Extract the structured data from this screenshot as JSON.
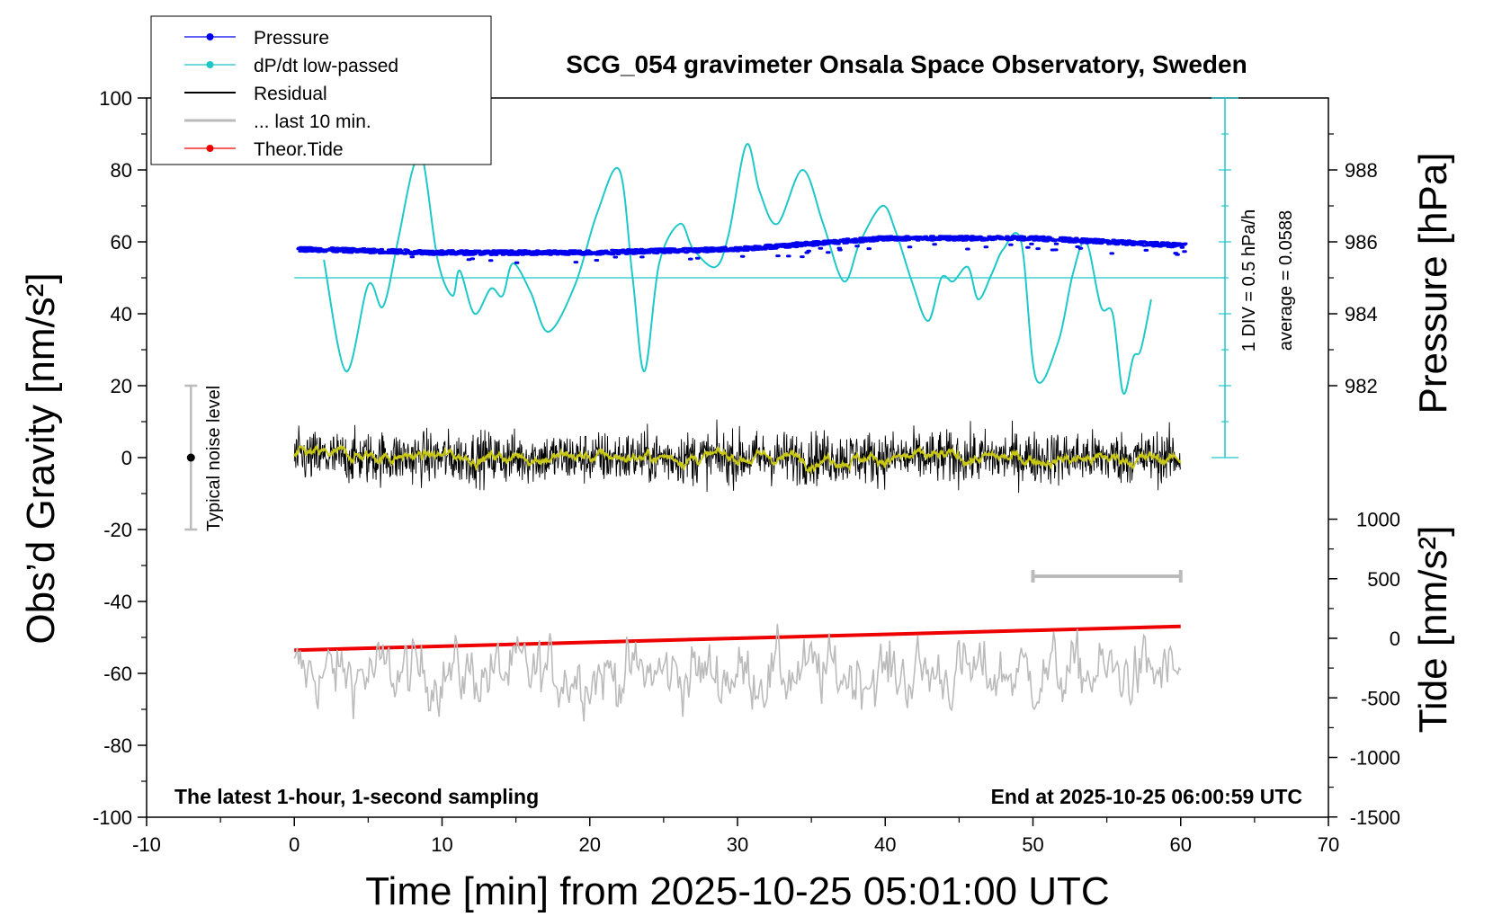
{
  "chart_data": {
    "type": "line",
    "title": "SCG_054 gravimeter Onsala Space Observatory, Sweden",
    "xlabel": "Time [min] from 2025-10-25 05:01:00 UTC",
    "ylabel_left": "Obs’d Gravity [nm/s²]",
    "ylabel_right_top": "Pressure [hPa]",
    "ylabel_right_bottom": "Tide [nm/s²]",
    "xlim": [
      -10,
      70
    ],
    "ylim_left": [
      -100,
      100
    ],
    "x_ticks": [
      "-10",
      "0",
      "10",
      "20",
      "30",
      "40",
      "50",
      "60",
      "70"
    ],
    "y_ticks_left": [
      "100",
      "80",
      "60",
      "40",
      "20",
      "0",
      "-20",
      "-40",
      "-60",
      "-80",
      "-100"
    ],
    "pressure_ticks": [
      "988",
      "986",
      "984",
      "982"
    ],
    "tide_ticks": [
      "1000",
      "500",
      "0",
      "-500",
      "-1000",
      "-1500"
    ],
    "legend_placement": "top-left",
    "legend": [
      {
        "name": "Pressure",
        "color": "#0000ee"
      },
      {
        "name": "dP/dt low-passed",
        "color": "#1fc8c8"
      },
      {
        "name": "Residual",
        "color": "#000000"
      },
      {
        "name": "... last 10 min.",
        "color": "#bbbbbb"
      },
      {
        "name": "Theor.Tide",
        "color": "#ee0000"
      }
    ],
    "notes": {
      "bottom_left": "The latest 1-hour, 1-second sampling",
      "bottom_right": "End at 2025-10-25 06:00:59 UTC",
      "noise": "Typical noise level",
      "div": "1 DIV = 0.5 hPa/h",
      "average": "average = 0.0588"
    },
    "series": [
      {
        "name": "Pressure",
        "unit": "hPa",
        "x": [
          0,
          10,
          20,
          30,
          40,
          50,
          60
        ],
        "values": [
          985.8,
          985.7,
          985.7,
          985.8,
          986.1,
          986.1,
          985.9
        ]
      },
      {
        "name": "dP/dt low-passed",
        "unit": "gravity-axis nm/s² (display)",
        "x": [
          2,
          3.5,
          5,
          6,
          7,
          8,
          8.7,
          9.7,
          10.7,
          11.2,
          12.2,
          13.3,
          14.1,
          14.8,
          16,
          17.2,
          19,
          20.5,
          22,
          22.9,
          23.7,
          24.7,
          26.1,
          27,
          28.5,
          29.4,
          30.6,
          31.5,
          32.7,
          34.4,
          35.8,
          37.2,
          38.3,
          39.8,
          40.7,
          41.8,
          42.9,
          43.8,
          44.6,
          45.6,
          46.3,
          47.2,
          48,
          49.2,
          50.2,
          51.7,
          52.7,
          53.6,
          54.6,
          55.4,
          56.1,
          56.8,
          57.3,
          58
        ],
        "values": [
          55,
          24,
          48,
          42,
          60,
          80,
          83,
          55,
          45,
          52,
          40,
          47,
          45,
          54,
          46,
          35,
          48,
          68,
          80,
          50,
          24,
          54,
          65,
          58,
          53,
          62,
          87,
          74,
          65,
          80,
          65,
          49,
          60,
          70,
          63,
          49,
          38,
          50,
          49,
          53,
          44,
          51,
          58,
          60,
          22,
          32,
          51,
          60,
          42,
          40,
          18,
          28,
          30,
          44
        ]
      },
      {
        "name": "Residual",
        "unit": "nm/s²",
        "x": [
          0,
          60
        ],
        "values": [
          0,
          0
        ],
        "spread": 15
      },
      {
        "name": "... last 10 min.",
        "unit": "nm/s² (offset -60)",
        "x": [
          0,
          60
        ],
        "values": [
          -60,
          -60
        ],
        "spread": 15
      },
      {
        "name": "Theor.Tide",
        "unit": "nm/s²",
        "x": [
          0,
          60
        ],
        "values": [
          -100,
          100
        ]
      }
    ],
    "extras": {
      "average_line_y": 50,
      "noise_bar": {
        "x": -7,
        "y_min": -20,
        "y_max": 20,
        "center": 0
      },
      "last_10_min_bar": {
        "x_start": 50,
        "x_end": 60,
        "y": -33
      }
    }
  }
}
